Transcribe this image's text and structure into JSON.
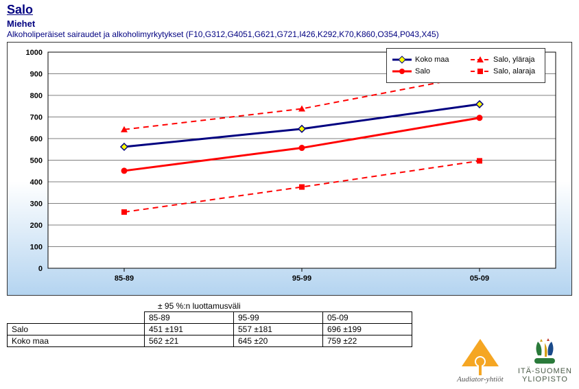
{
  "header": {
    "title": "Salo",
    "subtitle": "Miehet",
    "desc": "Alkoholiperäiset sairaudet ja alkoholimyrkytykset (F10,G312,G4051,G621,G721,I426,K292,K70,K860,O354,P043,X45)"
  },
  "chart": {
    "type": "line",
    "categories": [
      "85-89",
      "95-99",
      "05-09"
    ],
    "ylim": [
      0,
      1000
    ],
    "ytick_step": 100,
    "grid_color": "#000000",
    "background_color": "#ffffff",
    "series": {
      "kokomaa": {
        "label": "Koko maa",
        "values": [
          562,
          645,
          759
        ],
        "color": "#000080",
        "width": 3,
        "marker": "diamond",
        "marker_fill": "#ffff00",
        "marker_stroke": "#000080"
      },
      "salo": {
        "label": "Salo",
        "values": [
          451,
          557,
          696
        ],
        "color": "#ff0000",
        "width": 3,
        "marker": "circle",
        "marker_fill": "#ff0000",
        "marker_stroke": "#ff0000"
      },
      "ylaraja": {
        "label": "Salo, yläraja",
        "values": [
          642,
          738,
          895
        ],
        "color": "#ff0000",
        "width": 2,
        "dash": "8,6",
        "marker": "triangle",
        "marker_fill": "#ff0000"
      },
      "alaraja": {
        "label": "Salo, alaraja",
        "values": [
          260,
          376,
          497
        ],
        "color": "#ff0000",
        "width": 2,
        "dash": "8,6",
        "marker": "square",
        "marker_fill": "#ff0000"
      }
    }
  },
  "table": {
    "ci_label": "± 95 %:n luottamusväli",
    "cols": [
      "",
      "85-89",
      "95-99",
      "05-09"
    ],
    "rows": [
      [
        "Salo",
        "451 ±191",
        "557 ±181",
        "696 ±199"
      ],
      [
        "Koko maa",
        "562 ±21",
        "645 ±20",
        "759 ±22"
      ]
    ]
  },
  "logos": {
    "l1": "Audiator-yhtiöt",
    "l2a": "ITÄ-SUOMEN",
    "l2b": "YLIOPISTO"
  }
}
